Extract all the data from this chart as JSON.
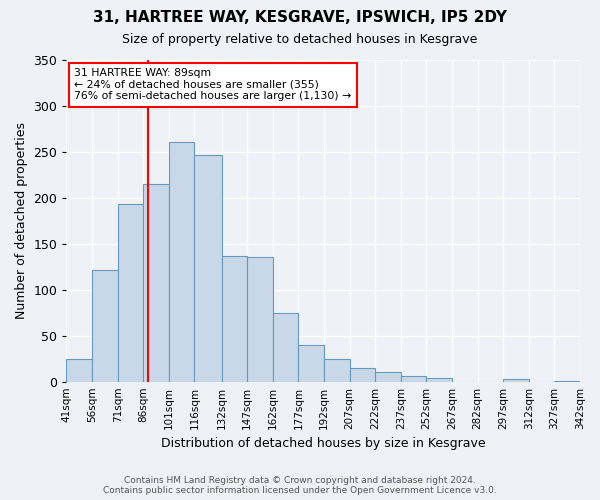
{
  "title": "31, HARTREE WAY, KESGRAVE, IPSWICH, IP5 2DY",
  "subtitle": "Size of property relative to detached houses in Kesgrave",
  "xlabel": "Distribution of detached houses by size in Kesgrave",
  "ylabel": "Number of detached properties",
  "bin_labels": [
    "41sqm",
    "56sqm",
    "71sqm",
    "86sqm",
    "101sqm",
    "116sqm",
    "132sqm",
    "147sqm",
    "162sqm",
    "177sqm",
    "192sqm",
    "207sqm",
    "222sqm",
    "237sqm",
    "252sqm",
    "267sqm",
    "282sqm",
    "297sqm",
    "312sqm",
    "327sqm",
    "342sqm"
  ],
  "bin_edges": [
    41,
    56,
    71,
    86,
    101,
    116,
    132,
    147,
    162,
    177,
    192,
    207,
    222,
    237,
    252,
    267,
    282,
    297,
    312,
    327,
    342
  ],
  "bar_heights": [
    25,
    121,
    193,
    215,
    261,
    247,
    137,
    136,
    75,
    40,
    25,
    15,
    10,
    6,
    4,
    0,
    0,
    3,
    0,
    1
  ],
  "bar_color": "#c8d8e8",
  "bar_edge_color": "#6699bb",
  "vline_x": 89,
  "vline_color": "red",
  "annotation_line1": "31 HARTREE WAY: 89sqm",
  "annotation_line2": "← 24% of detached houses are smaller (355)",
  "annotation_line3": "76% of semi-detached houses are larger (1,130) →",
  "ylim": [
    0,
    350
  ],
  "yticks": [
    0,
    50,
    100,
    150,
    200,
    250,
    300,
    350
  ],
  "footer_line1": "Contains HM Land Registry data © Crown copyright and database right 2024.",
  "footer_line2": "Contains public sector information licensed under the Open Government Licence v3.0.",
  "background_color": "#eef2f6",
  "grid_color": "#ffffff"
}
